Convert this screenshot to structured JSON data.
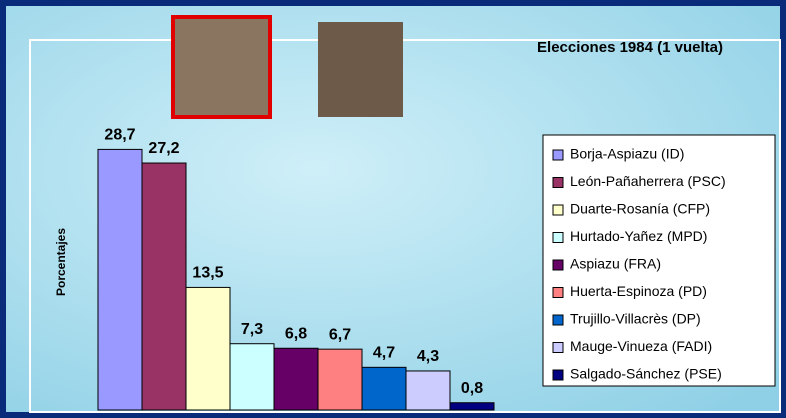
{
  "chart_data": {
    "type": "bar",
    "title": "Elecciones 1984  (1 vuelta)",
    "y_label": "Porcentajes",
    "categories": [
      "Borja-Aspiazu (ID)",
      "León-Pañaherrera (PSC)",
      "Duarte-Rosanía (CFP)",
      "Hurtado-Yañez (MPD)",
      "Aspiazu (FRA)",
      "Huerta-Espinoza (PD)",
      "Trujillo-Villacrès (DP)",
      "Mauge-Vinueza (FADI)",
      "Salgado-Sánchez (PSE)"
    ],
    "values": [
      28.7,
      27.2,
      13.5,
      7.3,
      6.8,
      6.7,
      4.7,
      4.3,
      0.8
    ],
    "value_labels": [
      "28,7",
      "27,2",
      "13,5",
      "7,3",
      "6,8",
      "6,7",
      "4,7",
      "4,3",
      "0,8"
    ],
    "colors": [
      "#9999ff",
      "#993366",
      "#ffffcc",
      "#ccffff",
      "#660066",
      "#ff8080",
      "#0066cc",
      "#ccccff",
      "#000080"
    ],
    "ylim": [
      0,
      30
    ],
    "legend": "right"
  }
}
